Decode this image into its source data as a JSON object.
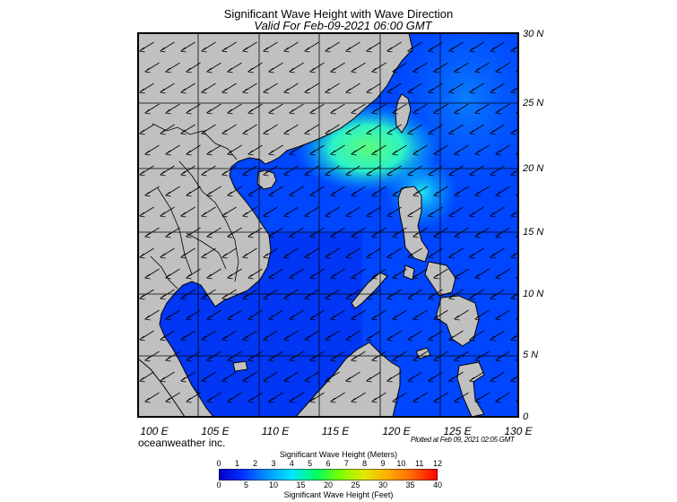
{
  "header": {
    "title": "Significant Wave Height with Wave Direction",
    "subtitle": "Valid For Feb-09-2021 06:00 GMT"
  },
  "map": {
    "region": "South China Sea",
    "lon_labels": [
      "100 E",
      "105 E",
      "110 E",
      "115 E",
      "120 E",
      "125 E",
      "130 E"
    ],
    "lat_labels": [
      "30 N",
      "25 N",
      "20 N",
      "15 N",
      "10 N",
      "5 N",
      "0"
    ],
    "land_color": "#c0c0c0",
    "predominant_wave_direction": "northeast to southwest"
  },
  "footer": {
    "brand": "oceanweather inc.",
    "plotted": "Plotted at Feb 09, 2021 02:05 GMT"
  },
  "colorbar": {
    "meters_title": "Significant Wave Height (Meters)",
    "meters_ticks": [
      "0",
      "1",
      "2",
      "3",
      "4",
      "5",
      "6",
      "7",
      "8",
      "9",
      "10",
      "11",
      "12"
    ],
    "feet_title": "Significant Wave Height (Feet)",
    "feet_ticks": [
      "0",
      "5",
      "10",
      "15",
      "20",
      "25",
      "30",
      "35",
      "40"
    ],
    "colors": [
      "#0000c8",
      "#0032ff",
      "#0096ff",
      "#00e6ff",
      "#00ff64",
      "#7cff00",
      "#e6e600",
      "#ffaa00",
      "#ff6400",
      "#ff0000"
    ]
  }
}
